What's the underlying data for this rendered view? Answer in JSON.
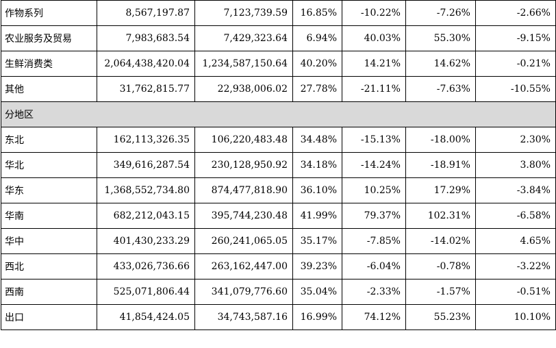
{
  "rows_top": [
    {
      "name": "作物系列",
      "c1": "8,567,197.87",
      "c2": "7,123,739.59",
      "c3": "16.85%",
      "c4": "-10.22%",
      "c5": "-7.26%",
      "c6": "-2.66%"
    },
    {
      "name": "农业服务及贸易",
      "c1": "7,983,683.54",
      "c2": "7,429,323.64",
      "c3": "6.94%",
      "c4": "40.03%",
      "c5": "55.30%",
      "c6": "-9.15%"
    },
    {
      "name": "生鲜消费类",
      "c1": "2,064,438,420.04",
      "c2": "1,234,587,150.64",
      "c3": "40.20%",
      "c4": "14.21%",
      "c5": "14.62%",
      "c6": "-0.21%"
    },
    {
      "name": "其他",
      "c1": "31,762,815.77",
      "c2": "22,938,006.02",
      "c3": "27.78%",
      "c4": "-21.11%",
      "c5": "-7.63%",
      "c6": "-10.55%"
    }
  ],
  "section_label": "分地区",
  "rows_region": [
    {
      "name": "东北",
      "c1": "162,113,326.35",
      "c2": "106,220,483.48",
      "c3": "34.48%",
      "c4": "-15.13%",
      "c5": "-18.00%",
      "c6": "2.30%"
    },
    {
      "name": "华北",
      "c1": "349,616,287.54",
      "c2": "230,128,950.92",
      "c3": "34.18%",
      "c4": "-14.24%",
      "c5": "-18.91%",
      "c6": "3.80%"
    },
    {
      "name": "华东",
      "c1": "1,368,552,734.80",
      "c2": "874,477,818.90",
      "c3": "36.10%",
      "c4": "10.25%",
      "c5": "17.29%",
      "c6": "-3.84%"
    },
    {
      "name": "华南",
      "c1": "682,212,043.15",
      "c2": "395,744,230.48",
      "c3": "41.99%",
      "c4": "79.37%",
      "c5": "102.31%",
      "c6": "-6.58%"
    },
    {
      "name": "华中",
      "c1": "401,430,233.29",
      "c2": "260,241,065.05",
      "c3": "35.17%",
      "c4": "-7.85%",
      "c5": "-14.02%",
      "c6": "4.65%"
    },
    {
      "name": "西北",
      "c1": "433,026,736.66",
      "c2": "263,162,447.00",
      "c3": "39.23%",
      "c4": "-6.04%",
      "c5": "-0.78%",
      "c6": "-3.22%"
    },
    {
      "name": "西南",
      "c1": "525,071,806.44",
      "c2": "341,079,776.60",
      "c3": "35.04%",
      "c4": "-2.33%",
      "c5": "-1.57%",
      "c6": "-0.51%"
    },
    {
      "name": "出口",
      "c1": "41,854,424.05",
      "c2": "34,743,587.16",
      "c3": "16.99%",
      "c4": "74.12%",
      "c5": "55.23%",
      "c6": "10.10%"
    }
  ]
}
